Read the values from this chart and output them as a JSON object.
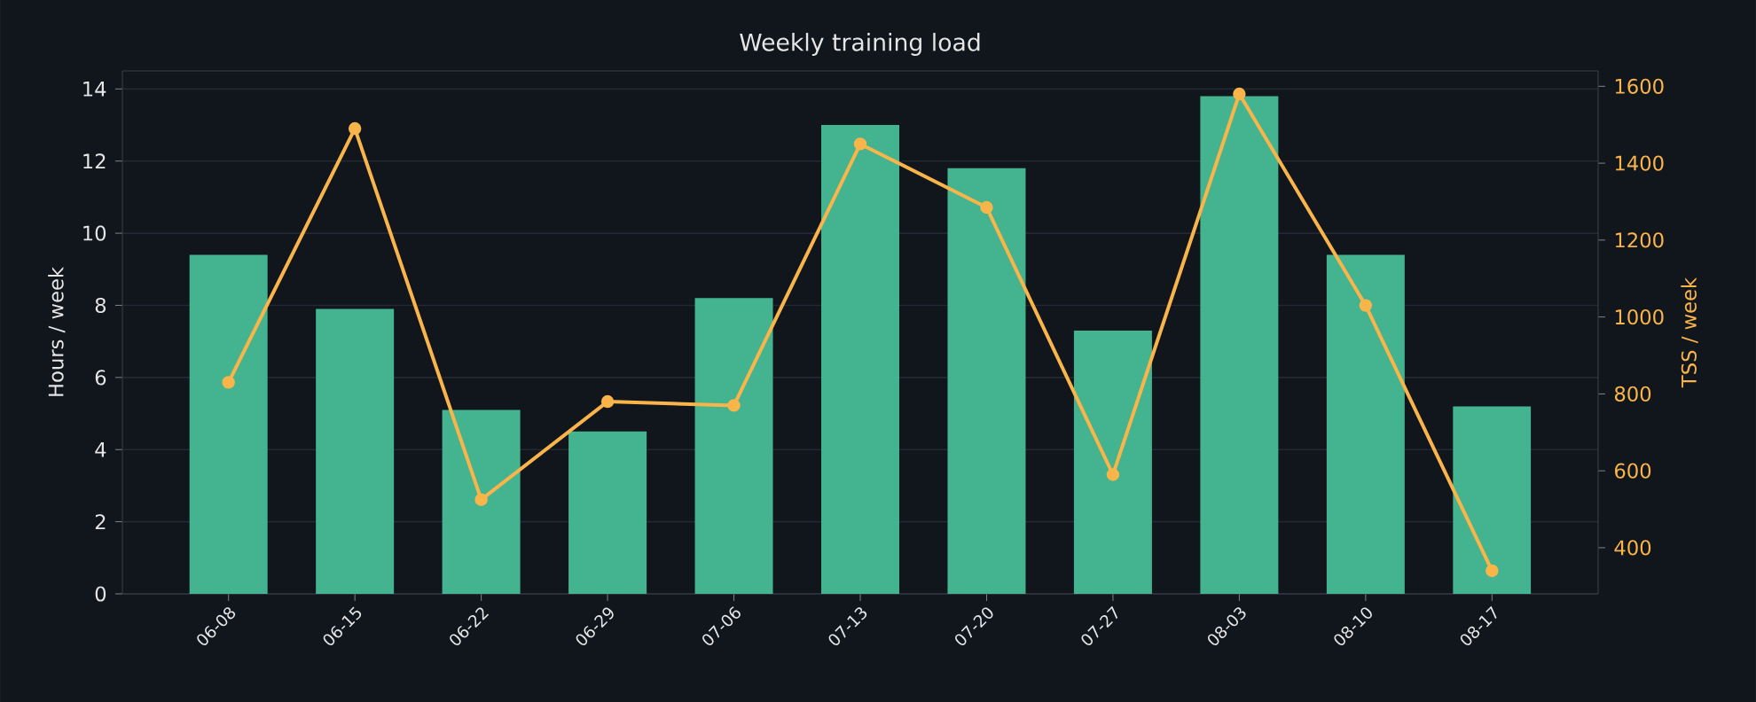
{
  "chart_data": {
    "type": "bar",
    "title": "Weekly training load",
    "ylabel": "Hours / week",
    "y2label": "TSS / week",
    "categories": [
      "06-08",
      "06-15",
      "06-22",
      "06-29",
      "07-06",
      "07-13",
      "07-20",
      "07-27",
      "08-03",
      "08-10",
      "08-17"
    ],
    "series": [
      {
        "color": "#43b48f",
        "values": [
          9.4,
          7.9,
          5.1,
          4.5,
          8.2,
          13.0,
          11.8,
          7.3,
          13.8,
          9.4,
          5.2
        ]
      },
      {
        "type": "line",
        "axis": "y2",
        "color": "#f9b44a",
        "marker": "circle",
        "values": [
          830,
          1490,
          525,
          780,
          770,
          1450,
          1285,
          590,
          1580,
          1030,
          340
        ]
      }
    ],
    "ylim": [
      0,
      14.5
    ],
    "yticks": [
      0,
      2,
      4,
      6,
      8,
      10,
      12,
      14
    ],
    "y2lim": [
      280,
      1640
    ],
    "y2ticks": [
      400,
      600,
      800,
      1000,
      1200,
      1400,
      1600
    ],
    "grid": "y",
    "legend": false
  }
}
